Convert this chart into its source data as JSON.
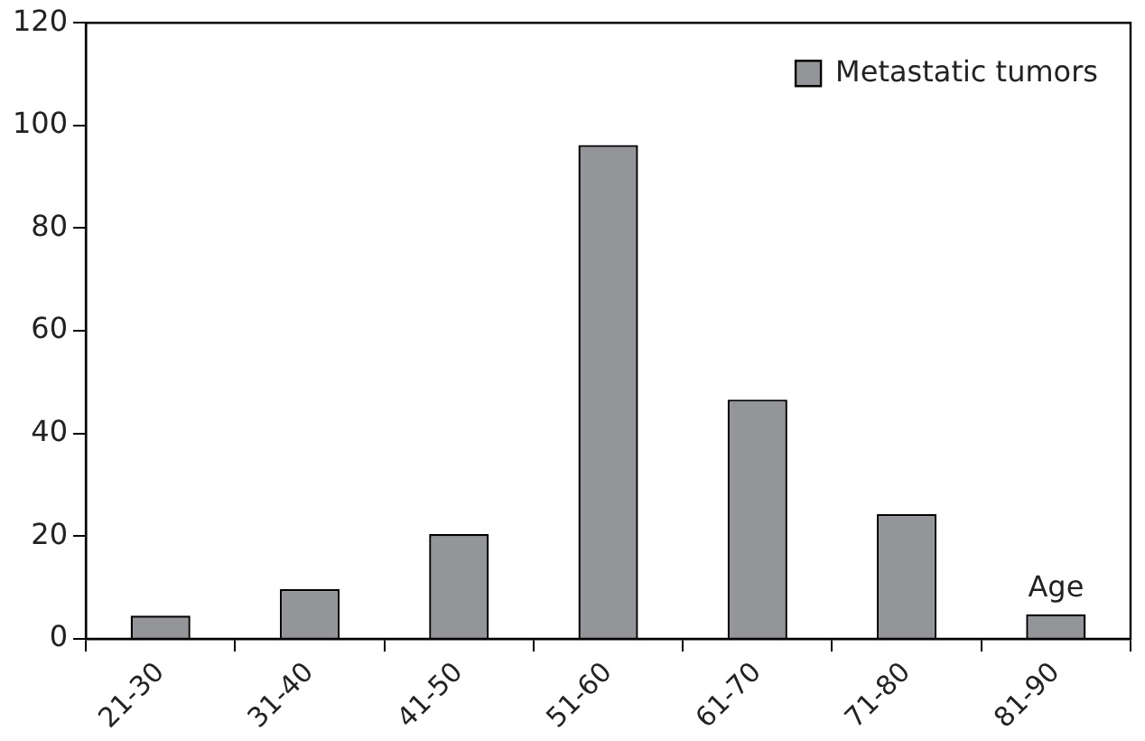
{
  "chart_data": {
    "type": "bar",
    "xlabel": "Age",
    "categories": [
      "21-30",
      "31-40",
      "41-50",
      "51-60",
      "61-70",
      "71-80",
      "81-90"
    ],
    "series": [
      {
        "name": "Metastatic tumors",
        "color": "#939598",
        "values": [
          4.5,
          9.7,
          20.4,
          96.2,
          46.6,
          24.3,
          4.8
        ]
      }
    ],
    "ylim": [
      0,
      120
    ],
    "yticks": [
      0,
      20,
      40,
      60,
      80,
      100,
      120
    ],
    "grid": false,
    "legend": "top right"
  }
}
